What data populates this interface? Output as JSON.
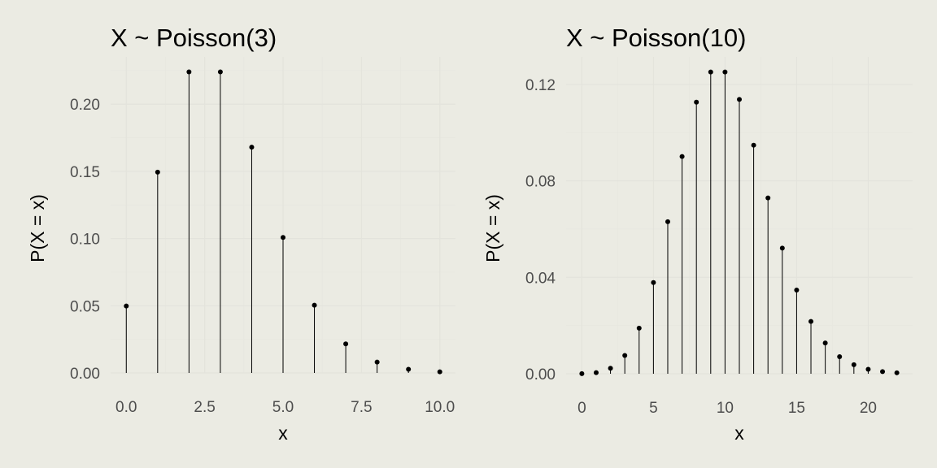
{
  "chart_data": [
    {
      "type": "scatter",
      "title": "X ~ Poisson(3)",
      "xlabel": "x",
      "ylabel": "P(X = x)",
      "x": [
        0,
        1,
        2,
        3,
        4,
        5,
        6,
        7,
        8,
        9,
        10
      ],
      "y": [
        0.0498,
        0.1494,
        0.224,
        0.224,
        0.168,
        0.1008,
        0.0504,
        0.0216,
        0.0081,
        0.0027,
        0.0008
      ],
      "xlim": [
        -0.5,
        10.5
      ],
      "ylim": [
        0,
        0.2352
      ],
      "xticks": [
        0,
        2.5,
        5,
        7.5,
        10
      ],
      "xtick_labels": [
        "0.0",
        "2.5",
        "5.0",
        "7.5",
        "10.0"
      ],
      "yticks": [
        0,
        0.05,
        0.1,
        0.15,
        0.2
      ],
      "ytick_labels": [
        "0.00",
        "0.05",
        "0.10",
        "0.15",
        "0.20"
      ],
      "grid": true,
      "style": "lollipop"
    },
    {
      "type": "scatter",
      "title": "X ~ Poisson(10)",
      "xlabel": "x",
      "ylabel": "P(X = x)",
      "x": [
        0,
        1,
        2,
        3,
        4,
        5,
        6,
        7,
        8,
        9,
        10,
        11,
        12,
        13,
        14,
        15,
        16,
        17,
        18,
        19,
        20,
        21,
        22
      ],
      "y": [
        5e-05,
        0.00045,
        0.00227,
        0.00757,
        0.01892,
        0.03783,
        0.06306,
        0.09008,
        0.1126,
        0.12511,
        0.12511,
        0.11374,
        0.09478,
        0.07291,
        0.05208,
        0.03472,
        0.0217,
        0.01276,
        0.00709,
        0.00373,
        0.00187,
        0.00089,
        0.0004
      ],
      "xlim": [
        -1.1,
        23.1
      ],
      "ylim": [
        0,
        0.1314
      ],
      "xticks": [
        0,
        5,
        10,
        15,
        20
      ],
      "xtick_labels": [
        "0",
        "5",
        "10",
        "15",
        "20"
      ],
      "yticks": [
        0,
        0.04,
        0.08,
        0.12
      ],
      "ytick_labels": [
        "0.00",
        "0.04",
        "0.08",
        "0.12"
      ],
      "grid": true,
      "style": "lollipop"
    }
  ]
}
